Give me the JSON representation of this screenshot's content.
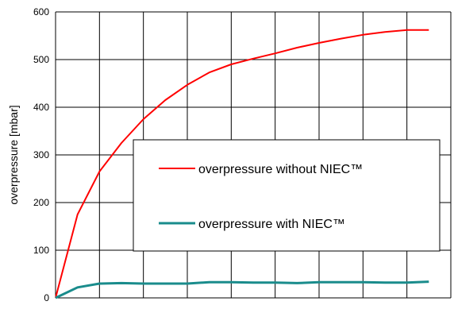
{
  "chart_data": {
    "type": "line",
    "ylabel": "overpressure [mbar]",
    "xlabel": "",
    "ylim": [
      0,
      600
    ],
    "yticks": [
      "0",
      "100",
      "200",
      "300",
      "400",
      "500",
      "600"
    ],
    "x_gridlines": 9,
    "grid": true,
    "legend_position": "center-right",
    "series": [
      {
        "name": "overpressure without NIEC™",
        "color": "#ff0000",
        "x": [
          0,
          0.5,
          1,
          1.5,
          2,
          2.5,
          3,
          3.5,
          4,
          4.5,
          5,
          5.5,
          6,
          6.5,
          7,
          7.5,
          8,
          8.5
        ],
        "values": [
          0,
          175,
          265,
          325,
          375,
          415,
          447,
          473,
          490,
          502,
          513,
          525,
          535,
          544,
          552,
          558,
          562,
          562
        ]
      },
      {
        "name": "overpressure with NIEC™",
        "color": "#1a8c8c",
        "x": [
          0,
          0.5,
          1,
          1.5,
          2,
          2.5,
          3,
          3.5,
          4,
          4.5,
          5,
          5.5,
          6,
          6.5,
          7,
          7.5,
          8,
          8.5
        ],
        "values": [
          0,
          22,
          30,
          31,
          30,
          30,
          30,
          33,
          33,
          32,
          32,
          31,
          33,
          33,
          33,
          32,
          32,
          34
        ]
      }
    ]
  }
}
